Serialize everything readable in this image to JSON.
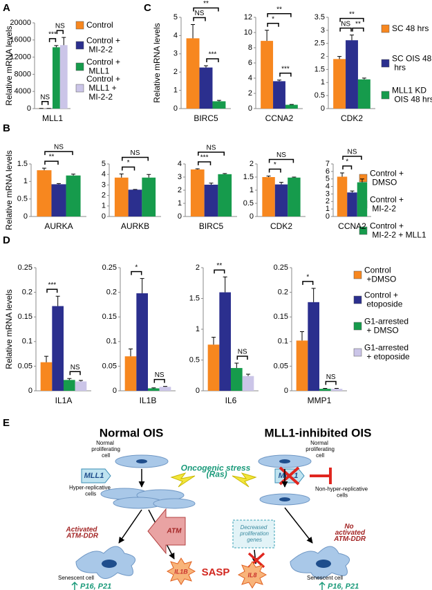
{
  "chart_data": [
    {
      "type": "bar",
      "panel": "A",
      "ylabel": "Relative mRNA levels",
      "series": [
        {
          "name": "Control",
          "color": "#f7871f"
        },
        {
          "name": "Control + MI-2-2",
          "color": "#2b2f8e"
        },
        {
          "name": "Control + MLL1",
          "color": "#169b4c"
        },
        {
          "name": "Control + MLL1 + MI-2-2",
          "color": "#cbc5e8"
        }
      ],
      "subplots": [
        {
          "category": "MLL1",
          "ylim": [
            0,
            20000
          ],
          "yticks": [
            0,
            4000,
            8000,
            12000,
            16000,
            20000
          ],
          "values": [
            30,
            30,
            14300,
            14800
          ],
          "errors": [
            10,
            10,
            400,
            1800
          ],
          "significance": [
            {
              "groups": [
                1,
                2
              ],
              "label": "***"
            },
            {
              "groups": [
                0,
                1
              ],
              "label": "NS"
            },
            {
              "groups": [
                2,
                3
              ],
              "label": "NS"
            }
          ]
        }
      ]
    },
    {
      "type": "bar",
      "panel": "B",
      "ylabel": "Relative mRNA levels",
      "series": [
        {
          "name": "Control + DMSO",
          "color": "#f7871f"
        },
        {
          "name": "Control + MI-2-2",
          "color": "#2b2f8e"
        },
        {
          "name": "Control + MI-2-2 + MLL1",
          "color": "#169b4c"
        }
      ],
      "subplots": [
        {
          "category": "AURKA",
          "ylim": [
            0,
            1.5
          ],
          "yticks": [
            0,
            0.5,
            1,
            1.5
          ],
          "values": [
            1.32,
            0.92,
            1.17
          ],
          "errors": [
            0.06,
            0.02,
            0.04
          ],
          "significance": [
            {
              "groups": [
                0,
                1
              ],
              "label": "**"
            },
            {
              "groups": [
                0,
                2
              ],
              "label": "NS"
            }
          ]
        },
        {
          "category": "AURKB",
          "ylim": [
            0,
            5
          ],
          "yticks": [
            0,
            1,
            2,
            3,
            4,
            5
          ],
          "values": [
            3.7,
            2.55,
            3.7
          ],
          "errors": [
            0.35,
            0.02,
            0.3
          ],
          "significance": [
            {
              "groups": [
                0,
                1
              ],
              "label": "*"
            },
            {
              "groups": [
                0,
                2
              ],
              "label": "NS"
            }
          ]
        },
        {
          "category": "BIRC5",
          "ylim": [
            0,
            4
          ],
          "yticks": [
            0,
            1,
            2,
            3,
            4
          ],
          "values": [
            3.58,
            2.42,
            3.22
          ],
          "errors": [
            0.05,
            0.12,
            0.05
          ],
          "significance": [
            {
              "groups": [
                0,
                1
              ],
              "label": "***"
            },
            {
              "groups": [
                0,
                2
              ],
              "label": "NS"
            }
          ]
        },
        {
          "category": "CDK2",
          "ylim": [
            0,
            2
          ],
          "yticks": [
            0,
            0.5,
            1,
            1.5,
            2
          ],
          "values": [
            1.5,
            1.22,
            1.48
          ],
          "errors": [
            0.04,
            0.08,
            0.02
          ],
          "significance": [
            {
              "groups": [
                0,
                1
              ],
              "label": "*"
            },
            {
              "groups": [
                0,
                2
              ],
              "label": "NS"
            }
          ]
        },
        {
          "category": "CCNA2",
          "ylim": [
            0,
            7
          ],
          "yticks": [
            0,
            1,
            2,
            3,
            4,
            5,
            6,
            7
          ],
          "values": [
            5.3,
            3.2,
            4.55
          ],
          "errors": [
            0.5,
            0.2,
            0.45
          ],
          "significance": [
            {
              "groups": [
                0,
                1
              ],
              "label": "*"
            },
            {
              "groups": [
                0,
                2
              ],
              "label": "NS"
            }
          ]
        }
      ]
    },
    {
      "type": "bar",
      "panel": "C",
      "ylabel": "Relative mRNA levels",
      "series": [
        {
          "name": "SC 48 hrs",
          "color": "#f7871f"
        },
        {
          "name": "SC OIS 48 hrs",
          "color": "#2b2f8e"
        },
        {
          "name": "MLL1 KD OIS 48 hrs",
          "color": "#169b4c"
        }
      ],
      "subplots": [
        {
          "category": "BIRC5",
          "ylim": [
            0,
            5
          ],
          "yticks": [
            0,
            1,
            2,
            3,
            4,
            5
          ],
          "values": [
            3.85,
            2.25,
            0.4
          ],
          "errors": [
            0.75,
            0.1,
            0.05
          ],
          "significance": [
            {
              "groups": [
                0,
                1
              ],
              "label": "NS"
            },
            {
              "groups": [
                1,
                2
              ],
              "label": "***"
            },
            {
              "groups": [
                0,
                2
              ],
              "label": "**"
            }
          ]
        },
        {
          "category": "CCNA2",
          "ylim": [
            0,
            12
          ],
          "yticks": [
            0,
            2,
            4,
            6,
            8,
            10,
            12
          ],
          "values": [
            8.9,
            3.6,
            0.5
          ],
          "errors": [
            1.4,
            0.15,
            0.05
          ],
          "significance": [
            {
              "groups": [
                0,
                1
              ],
              "label": "*"
            },
            {
              "groups": [
                1,
                2
              ],
              "label": "***"
            },
            {
              "groups": [
                0,
                2
              ],
              "label": "**"
            }
          ]
        },
        {
          "category": "CDK2",
          "ylim": [
            0,
            3.5
          ],
          "yticks": [
            0,
            0.5,
            1,
            1.5,
            2,
            2.5,
            3,
            3.5
          ],
          "values": [
            1.9,
            2.62,
            1.12
          ],
          "errors": [
            0.1,
            0.2,
            0.05
          ],
          "significance": [
            {
              "groups": [
                0,
                1
              ],
              "label": "NS"
            },
            {
              "groups": [
                1,
                2
              ],
              "label": "**"
            },
            {
              "groups": [
                0,
                2
              ],
              "label": "**"
            }
          ]
        }
      ]
    },
    {
      "type": "bar",
      "panel": "D",
      "ylabel": "Relative mRNA levels",
      "series": [
        {
          "name": "Control +DMSO",
          "color": "#f7871f"
        },
        {
          "name": "Control + etoposide",
          "color": "#2b2f8e"
        },
        {
          "name": "G1-arrested + DMSO",
          "color": "#169b4c"
        },
        {
          "name": "G1-arrested + etoposide",
          "color": "#cbc5e8"
        }
      ],
      "subplots": [
        {
          "category": "IL1A",
          "ylim": [
            0,
            0.25
          ],
          "yticks": [
            0,
            0.05,
            0.1,
            0.15,
            0.2,
            0.25
          ],
          "values": [
            0.058,
            0.172,
            0.022,
            0.019
          ],
          "errors": [
            0.012,
            0.02,
            0.003,
            0.002
          ],
          "significance": [
            {
              "groups": [
                0,
                1
              ],
              "label": "***"
            },
            {
              "groups": [
                2,
                3
              ],
              "label": "NS"
            }
          ]
        },
        {
          "category": "IL1B",
          "ylim": [
            0,
            0.25
          ],
          "yticks": [
            0,
            0.05,
            0.1,
            0.15,
            0.2,
            0.25
          ],
          "values": [
            0.07,
            0.198,
            0.005,
            0.008
          ],
          "errors": [
            0.015,
            0.03,
            0.001,
            0.001
          ],
          "significance": [
            {
              "groups": [
                0,
                1
              ],
              "label": "*"
            },
            {
              "groups": [
                2,
                3
              ],
              "label": "NS"
            }
          ]
        },
        {
          "category": "IL6",
          "ylim": [
            0,
            2
          ],
          "yticks": [
            0,
            0.5,
            1,
            1.5,
            2
          ],
          "values": [
            0.75,
            1.6,
            0.37,
            0.24
          ],
          "errors": [
            0.12,
            0.25,
            0.08,
            0.03
          ],
          "significance": [
            {
              "groups": [
                0,
                1
              ],
              "label": "**"
            },
            {
              "groups": [
                2,
                3
              ],
              "label": "NS"
            }
          ]
        },
        {
          "category": "MMP1",
          "ylim": [
            0,
            0.25
          ],
          "yticks": [
            0,
            0.05,
            0.1,
            0.15,
            0.2,
            0.25
          ],
          "values": [
            0.102,
            0.18,
            0.004,
            0.004
          ],
          "errors": [
            0.018,
            0.028,
            0.001,
            0.001
          ],
          "significance": [
            {
              "groups": [
                0,
                1
              ],
              "label": "*"
            },
            {
              "groups": [
                2,
                3
              ],
              "label": "NS"
            }
          ]
        }
      ]
    }
  ],
  "diagram": {
    "panel": "E",
    "left_title": "Normal OIS",
    "right_title": "MLL1-inhibited OIS",
    "left_start_cell": "Normal proliferating cell",
    "right_start_cell": "Normal proliferating cell",
    "left_mll1": "MLL1",
    "right_mll1": "MLL1",
    "stress": "Oncogenic stress (Ras)",
    "left_mid_cell": "Hyper-replicative cells",
    "right_mid_cell": "Non-hyper-replicative cells",
    "left_ddr": "Activated ATM-DDR",
    "atm": "ATM",
    "decreased": "Decreased proliferation genes",
    "right_ddr": "No activated ATM-DDR",
    "left_end_cell": "Senescent cell",
    "right_end_cell": "Senescent cell",
    "left_markers": "P16, P21",
    "right_markers": "P16, P21",
    "il1b": "IL1B",
    "sasp": "SASP",
    "il8": "IL8"
  }
}
